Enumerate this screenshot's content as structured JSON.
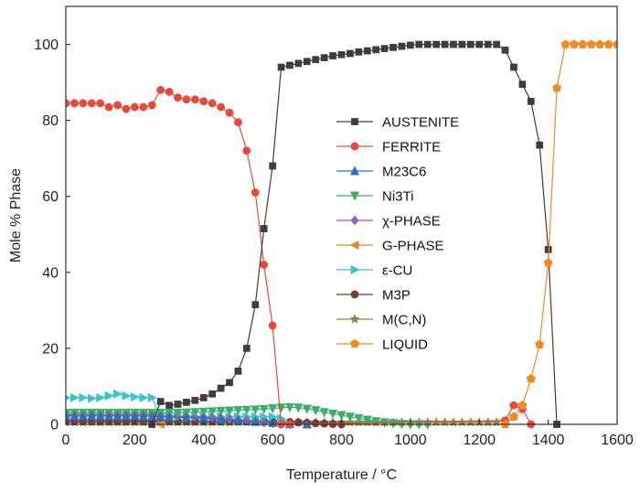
{
  "chart_data": {
    "type": "line",
    "xlabel": "Temperature / °C",
    "ylabel": "Mole % Phase",
    "xlim": [
      0,
      1600
    ],
    "ylim": [
      0,
      110
    ],
    "xticks": [
      0,
      200,
      400,
      600,
      800,
      1000,
      1200,
      1400,
      1600
    ],
    "yticks": [
      0,
      20,
      40,
      60,
      80,
      100
    ],
    "grid": false,
    "legend_position": "center",
    "series": [
      {
        "name": "AUSTENITE",
        "color": "#3d3d3d",
        "marker": "square",
        "x": [
          250,
          275,
          300,
          325,
          350,
          375,
          400,
          425,
          450,
          475,
          500,
          525,
          550,
          575,
          600,
          625,
          650,
          675,
          700,
          725,
          750,
          775,
          800,
          825,
          850,
          875,
          900,
          925,
          950,
          975,
          1000,
          1025,
          1050,
          1075,
          1100,
          1125,
          1150,
          1175,
          1200,
          1225,
          1250,
          1275,
          1300,
          1325,
          1350,
          1375,
          1400,
          1425
        ],
        "y": [
          0,
          6,
          5,
          5.3,
          5.8,
          6.3,
          7,
          8,
          9.5,
          11,
          14,
          20,
          31.5,
          51.5,
          68,
          94,
          94.5,
          95,
          95.5,
          96,
          96.5,
          97,
          97.3,
          97.6,
          98,
          98.3,
          98.6,
          98.9,
          99.2,
          99.5,
          99.8,
          100,
          100,
          100,
          100,
          100,
          100,
          100,
          100,
          100,
          100,
          98.5,
          94,
          89.5,
          85,
          73.5,
          46,
          0
        ]
      },
      {
        "name": "FERRITE",
        "color": "#e8493a",
        "marker": "circle",
        "x": [
          0,
          25,
          50,
          75,
          100,
          125,
          150,
          175,
          200,
          225,
          250,
          275,
          300,
          325,
          350,
          375,
          400,
          425,
          450,
          475,
          500,
          525,
          550,
          575,
          600,
          625,
          650,
          1275,
          1300,
          1325,
          1350
        ],
        "y": [
          84.5,
          84.5,
          84.5,
          84.5,
          84.5,
          83.5,
          84,
          83,
          83.5,
          83.5,
          84,
          88,
          87.5,
          86,
          85.5,
          85.5,
          85,
          84.5,
          83.5,
          82,
          79.5,
          72,
          61,
          42,
          26,
          0,
          0,
          1,
          5,
          4,
          0
        ]
      },
      {
        "name": "M23C6",
        "color": "#2f6fb8",
        "marker": "triangle-up",
        "x": [
          0,
          25,
          50,
          75,
          100,
          125,
          150,
          175,
          200,
          225,
          250,
          275,
          300,
          350,
          400,
          450,
          500,
          550,
          600,
          650,
          700
        ],
        "y": [
          2.2,
          2.2,
          2.2,
          2.2,
          2.2,
          2.2,
          2.2,
          2.2,
          2.2,
          2.2,
          2.1,
          2,
          1.9,
          1.8,
          1.6,
          1.3,
          1,
          0.7,
          0.4,
          0.1,
          0
        ]
      },
      {
        "name": "Ni3Ti",
        "color": "#3caf6b",
        "marker": "triangle-down",
        "x": [
          0,
          25,
          50,
          75,
          100,
          125,
          150,
          175,
          200,
          225,
          250,
          275,
          300,
          325,
          350,
          375,
          400,
          425,
          450,
          475,
          500,
          525,
          550,
          575,
          600,
          625,
          650,
          675,
          700,
          725,
          750,
          775,
          800,
          825,
          850,
          875,
          900,
          925,
          950,
          975,
          1000,
          1025,
          1050
        ],
        "y": [
          3,
          3,
          3,
          3,
          3,
          3,
          3,
          3,
          3,
          3,
          3,
          3,
          3,
          3,
          3.1,
          3.2,
          3.3,
          3.4,
          3.5,
          3.6,
          3.7,
          3.8,
          3.9,
          4,
          4.2,
          4.4,
          4.5,
          4.4,
          4.1,
          3.7,
          3.2,
          2.8,
          2.4,
          2,
          1.6,
          1.2,
          0.8,
          0.5,
          0.3,
          0.1,
          0,
          0,
          0
        ]
      },
      {
        "name": "χ-PHASE",
        "color": "#8a62c4",
        "marker": "diamond",
        "x": [
          0,
          25,
          50,
          75,
          100,
          125,
          150,
          175,
          200,
          225,
          250,
          275,
          300,
          325,
          350,
          375,
          400,
          425,
          450,
          475,
          500,
          525,
          550,
          575,
          600,
          625,
          650
        ],
        "y": [
          2.5,
          2.5,
          2.5,
          2.5,
          2.5,
          2.5,
          2.5,
          2.5,
          2.5,
          2.5,
          2.5,
          2.4,
          2.3,
          2.2,
          2.1,
          2,
          1.9,
          1.8,
          1.6,
          1.4,
          1.2,
          1,
          0.8,
          0.5,
          0.3,
          0.1,
          0
        ]
      },
      {
        "name": "G-PHASE",
        "color": "#d98a2a",
        "marker": "triangle-left",
        "x": [
          0,
          25,
          50,
          75,
          100,
          125,
          150,
          175,
          200,
          225,
          250,
          275
        ],
        "y": [
          3,
          3,
          3,
          3,
          3,
          3,
          3,
          3,
          3,
          3,
          3,
          0
        ]
      },
      {
        "name": "ε-CU",
        "color": "#3cc4cc",
        "marker": "triangle-right",
        "x": [
          0,
          25,
          50,
          75,
          100,
          125,
          150,
          175,
          200,
          225,
          250,
          275,
          300,
          325,
          350,
          375,
          400,
          425,
          450,
          475,
          500,
          525,
          550,
          575,
          600,
          625,
          650
        ],
        "y": [
          7,
          7,
          7,
          6.8,
          7,
          7.5,
          8,
          7.5,
          7.2,
          7,
          7,
          2,
          2,
          2,
          2,
          2,
          2,
          2,
          2,
          2,
          2,
          2,
          2,
          2,
          2,
          1.5,
          0
        ]
      },
      {
        "name": "M3P",
        "color": "#7a3b3b",
        "marker": "circle",
        "x": [
          0,
          25,
          50,
          75,
          100,
          125,
          150,
          175,
          200,
          225,
          250,
          275,
          300,
          325,
          350,
          375,
          400,
          425,
          450,
          475,
          500,
          525,
          550,
          575,
          600,
          625,
          650,
          675,
          700,
          725,
          750,
          775,
          800
        ],
        "y": [
          0.8,
          0.8,
          0.8,
          0.8,
          0.8,
          0.8,
          0.8,
          0.8,
          0.8,
          0.8,
          0.8,
          0.8,
          0.8,
          0.8,
          0.8,
          0.8,
          0.8,
          0.8,
          0.8,
          0.8,
          0.8,
          0.8,
          0.8,
          0.8,
          0.8,
          0.7,
          0.6,
          0.5,
          0.4,
          0.3,
          0.2,
          0.1,
          0
        ]
      },
      {
        "name": "M(C,N)",
        "color": "#8a8a3a",
        "marker": "star",
        "x": [
          0,
          25,
          50,
          75,
          100,
          125,
          150,
          175,
          200,
          225,
          250,
          275,
          300,
          325,
          350,
          375,
          400,
          425,
          450,
          475,
          500,
          525,
          550,
          575,
          600,
          625,
          650,
          675,
          700,
          725,
          750,
          775,
          800,
          825,
          850,
          875,
          900,
          925,
          950,
          975,
          1000,
          1025,
          1050,
          1075,
          1100,
          1125,
          1150,
          1175,
          1200,
          1225,
          1250
        ],
        "y": [
          0.5,
          0.5,
          0.5,
          0.5,
          0.5,
          0.5,
          0.5,
          0.5,
          0.5,
          0.5,
          0.5,
          0.5,
          0.5,
          0.5,
          0.5,
          0.5,
          0.5,
          0.5,
          0.5,
          0.5,
          0.5,
          0.5,
          0.5,
          0.5,
          0.5,
          0.5,
          0.5,
          0.5,
          0.5,
          0.5,
          0.5,
          0.5,
          0.5,
          0.5,
          0.5,
          0.5,
          0.5,
          0.5,
          0.5,
          0.5,
          0.5,
          0.5,
          0.5,
          0.5,
          0.5,
          0.5,
          0.5,
          0.5,
          0.5,
          0.5,
          0.5
        ]
      },
      {
        "name": "LIQUID",
        "color": "#f08a24",
        "marker": "pentagon",
        "x": [
          1275,
          1300,
          1325,
          1350,
          1375,
          1400,
          1425,
          1450,
          1475,
          1500,
          1525,
          1550,
          1575,
          1600
        ],
        "y": [
          0,
          2,
          5,
          12,
          21,
          42.5,
          88.5,
          100,
          100,
          100,
          100,
          100,
          100,
          100
        ]
      }
    ]
  }
}
